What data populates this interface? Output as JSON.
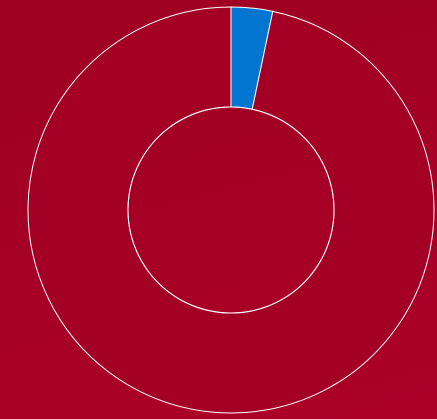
{
  "colors": {
    "background": "#a30025",
    "accent_segment": "#0275d0",
    "ring_fill": "#a40026",
    "ring_stroke": "#ffffff"
  },
  "chart_data": {
    "type": "pie",
    "variant": "donut",
    "title": "",
    "slices": [
      {
        "value": 3.3,
        "color": "#0275d0"
      },
      {
        "value": 96.7,
        "color": "#a40026"
      }
    ],
    "start_angle_deg": 0,
    "direction": "clockwise",
    "legend": "none",
    "labels_shown": false
  }
}
